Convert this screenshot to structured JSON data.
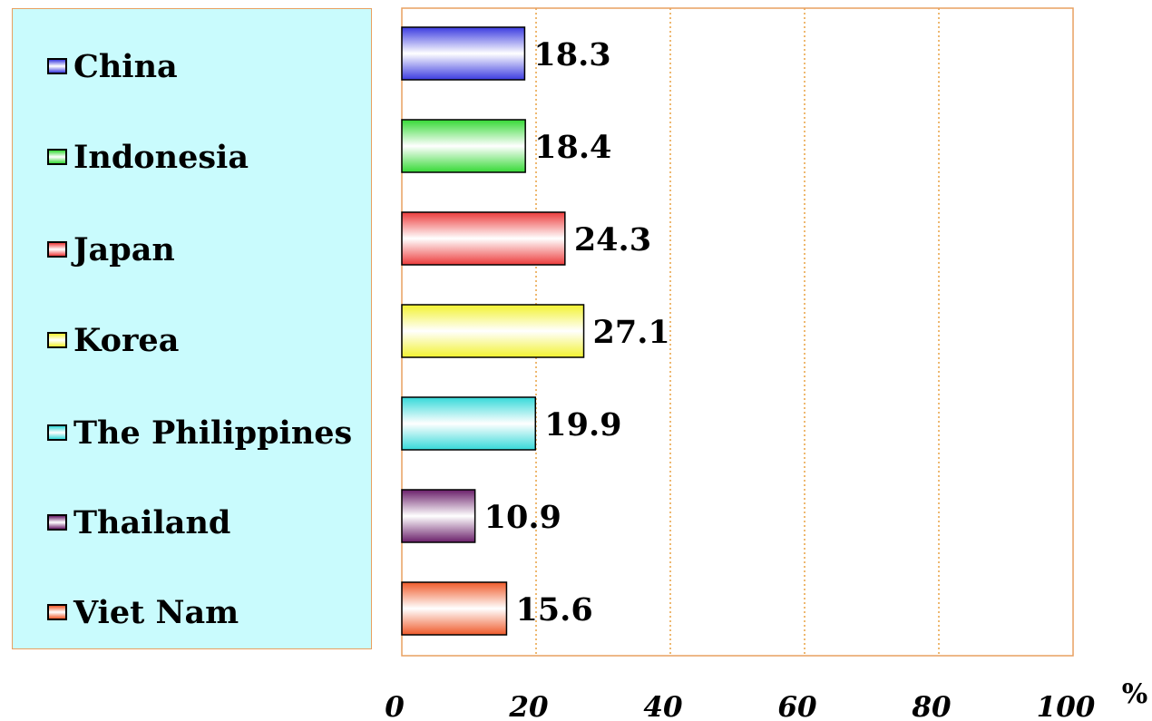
{
  "chart_data": {
    "type": "bar",
    "orientation": "horizontal",
    "categories": [
      "China",
      "Indonesia",
      "Japan",
      "Korea",
      "The Philippines",
      "Thailand",
      "Viet Nam"
    ],
    "values": [
      18.3,
      18.4,
      24.3,
      27.1,
      19.9,
      10.9,
      15.6
    ],
    "value_labels": [
      "18.3",
      "18.4",
      "24.3",
      "27.1",
      "19.9",
      "10.9",
      "15.6"
    ],
    "colors": [
      "#3b3be0",
      "#35d935",
      "#ec3b3b",
      "#f2f230",
      "#35d9d9",
      "#6a1f6a",
      "#ef5a2a"
    ],
    "xlim": [
      0,
      100
    ],
    "xticks": [
      0,
      20,
      40,
      60,
      80,
      100
    ],
    "xtick_labels": [
      "0",
      "20",
      "40",
      "60",
      "80",
      "100"
    ],
    "x_unit": "%",
    "title": "",
    "xlabel": "",
    "ylabel": "",
    "grid": "vertical dotted",
    "legend_position": "left"
  },
  "legend": {
    "items": [
      {
        "label": "China",
        "color": "#3b3be0"
      },
      {
        "label": "Indonesia",
        "color": "#35d935"
      },
      {
        "label": "Japan",
        "color": "#ec3b3b"
      },
      {
        "label": "Korea",
        "color": "#f2f230"
      },
      {
        "label": "The Philippines",
        "color": "#35d9d9"
      },
      {
        "label": "Thailand",
        "color": "#6a1f6a"
      },
      {
        "label": "Viet Nam",
        "color": "#ef5a2a"
      }
    ]
  },
  "colors": {
    "plot_border": "#e9a060",
    "gridline": "#e9a040",
    "legend_bg": "#c9fbfd"
  }
}
